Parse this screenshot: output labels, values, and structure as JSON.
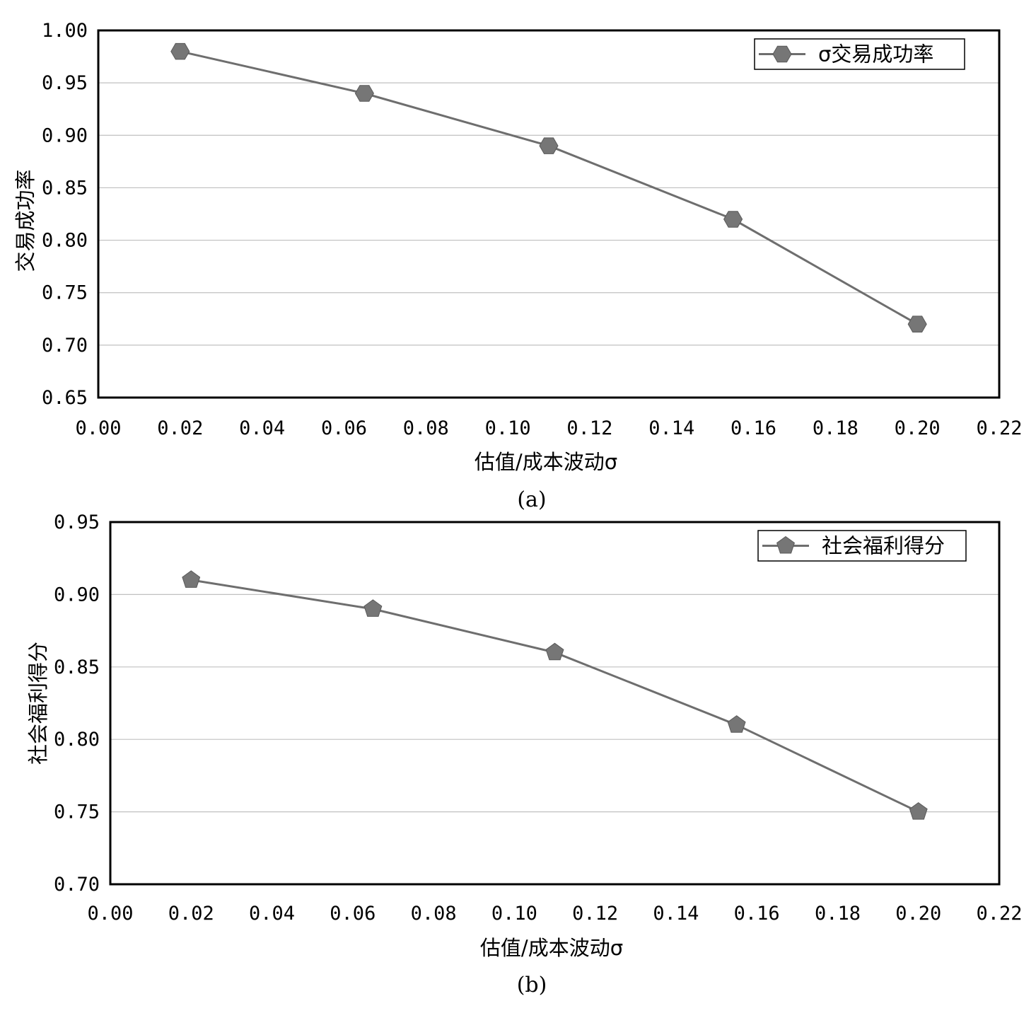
{
  "chart_data": [
    {
      "id": "a",
      "type": "line",
      "caption": "(a)",
      "xlabel": "估值/成本波动σ",
      "ylabel": "交易成功率",
      "xlim": [
        0.0,
        0.22
      ],
      "ylim": [
        0.65,
        1.0
      ],
      "x_ticks": [
        "0.00",
        "0.02",
        "0.04",
        "0.06",
        "0.08",
        "0.10",
        "0.12",
        "0.14",
        "0.16",
        "0.18",
        "0.20",
        "0.22"
      ],
      "y_ticks": [
        "0.65",
        "0.70",
        "0.75",
        "0.80",
        "0.85",
        "0.90",
        "0.95",
        "1.00"
      ],
      "grid": "horizontal",
      "legend_position": "top-right",
      "marker": "hexagon",
      "series": [
        {
          "name": "σ交易成功率",
          "x": [
            0.02,
            0.065,
            0.11,
            0.155,
            0.2
          ],
          "y": [
            0.98,
            0.94,
            0.89,
            0.82,
            0.72
          ],
          "color": "#6e6e6e"
        }
      ]
    },
    {
      "id": "b",
      "type": "line",
      "caption": "(b)",
      "xlabel": "估值/成本波动σ",
      "ylabel": "社会福利得分",
      "xlim": [
        0.0,
        0.22
      ],
      "ylim": [
        0.7,
        0.95
      ],
      "x_ticks": [
        "0.00",
        "0.02",
        "0.04",
        "0.06",
        "0.08",
        "0.10",
        "0.12",
        "0.14",
        "0.16",
        "0.18",
        "0.20",
        "0.22"
      ],
      "y_ticks": [
        "0.70",
        "0.75",
        "0.80",
        "0.85",
        "0.90",
        "0.95"
      ],
      "grid": "horizontal",
      "legend_position": "top-right",
      "marker": "pentagon",
      "series": [
        {
          "name": "社会福利得分",
          "x": [
            0.02,
            0.065,
            0.11,
            0.155,
            0.2
          ],
          "y": [
            0.91,
            0.89,
            0.86,
            0.81,
            0.75
          ],
          "color": "#6e6e6e"
        }
      ]
    }
  ]
}
